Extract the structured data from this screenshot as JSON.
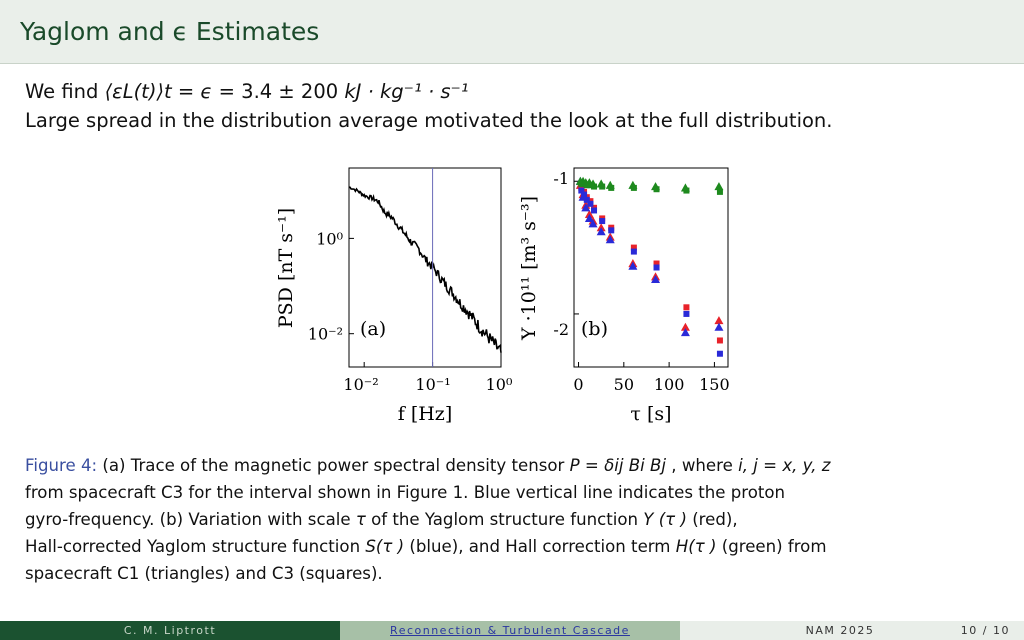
{
  "header": {
    "title": "Yaglom and ϵ Estimates"
  },
  "body": {
    "line1": {
      "we_find": "We find ",
      "expr": "⟨εL(t)⟩t = ϵ = ",
      "value": "3.4 ± 200 ",
      "units": "kJ · kg⁻¹ · s⁻¹"
    },
    "line2": "Large spread in the distribution average motivated the look at the full distribution."
  },
  "figure": {
    "panel_a": {
      "ylabel": "PSD [nT s⁻¹]",
      "xlabel": "f [Hz]",
      "panel_label": "(a)",
      "yticks": [
        "10⁰",
        "10⁻²"
      ],
      "xticks": [
        "10⁻²",
        "10⁻¹",
        "10⁰"
      ],
      "vline_color": "#6a6ab8"
    },
    "panel_b": {
      "ylabel": "Y ·10¹¹ [m³ s⁻³]",
      "xlabel": "τ [s]",
      "panel_label": "(b)",
      "yticks": [
        "-1",
        "-2"
      ],
      "xticks": [
        "0",
        "50",
        "100",
        "150"
      ]
    }
  },
  "caption": {
    "label": "Figure 4:",
    "line1_a": " (a) Trace of the magnetic power spectral density tensor ",
    "line1_math": "P = δij Bi Bj",
    "line1_b": " , where ",
    "line1_math2": "i, j = x, y, z",
    "line2": "from spacecraft C3 for the interval shown in Figure 1. Blue vertical line indicates the proton",
    "line3_a": "gyro-frequency. (b) Variation with scale ",
    "line3_tau": "τ",
    "line3_b": " of the Yaglom structure function ",
    "line3_y": "Y (τ )",
    "line3_c": " (red),",
    "line4_a": "Hall-corrected Yaglom structure function ",
    "line4_s": "S(τ )",
    "line4_b": " (blue), and Hall correction term ",
    "line4_h": "H(τ )",
    "line4_c": " (green) from",
    "line5": "spacecraft C1 (triangles) and C3 (squares)."
  },
  "footer": {
    "author": "C. M. Liptrott",
    "talk": "Reconnection & Turbulent Cascade",
    "conference": "NAM 2025",
    "page": "10 / 10"
  },
  "chart_data": [
    {
      "type": "line",
      "xscale": "log",
      "yscale": "log",
      "xlim": [
        0.006,
        1.0
      ],
      "ylim": [
        0.002,
        30
      ],
      "xlabel": "f [Hz]",
      "ylabel": "PSD [nT s⁻¹]",
      "vline_x": 0.1,
      "x": [
        0.006,
        0.008,
        0.01,
        0.013,
        0.016,
        0.02,
        0.025,
        0.032,
        0.04,
        0.05,
        0.063,
        0.08,
        0.1,
        0.13,
        0.16,
        0.2,
        0.25,
        0.32,
        0.4,
        0.5,
        0.63,
        0.8,
        1.0
      ],
      "y": [
        12,
        10,
        8,
        7,
        6,
        3.5,
        2.8,
        1.8,
        1.2,
        0.8,
        0.6,
        0.35,
        0.25,
        0.15,
        0.1,
        0.07,
        0.045,
        0.03,
        0.02,
        0.013,
        0.009,
        0.006,
        0.004
      ]
    },
    {
      "type": "scatter",
      "xlim": [
        -5,
        165
      ],
      "ylim": [
        -2.4,
        -0.9
      ],
      "xlabel": "τ [s]",
      "ylabel": "Y ·10¹¹ [m³ s⁻³]",
      "series": [
        {
          "name": "Y (τ )",
          "color": "#e8222a",
          "marker": "triangle",
          "x": [
            2,
            5,
            8,
            12,
            16,
            25,
            35,
            60,
            85,
            118,
            155
          ],
          "y": [
            -1.03,
            -1.1,
            -1.18,
            -1.25,
            -1.3,
            -1.35,
            -1.42,
            -1.62,
            -1.72,
            -2.1,
            -2.05
          ]
        },
        {
          "name": "Y (τ )",
          "color": "#e8222a",
          "marker": "square",
          "x": [
            2,
            5,
            8,
            12,
            16,
            25,
            35,
            60,
            85,
            118,
            155
          ],
          "y": [
            -1.05,
            -1.08,
            -1.12,
            -1.15,
            -1.2,
            -1.28,
            -1.35,
            -1.5,
            -1.62,
            -1.95,
            -2.2
          ]
        },
        {
          "name": "S(τ )",
          "color": "#2a2ad8",
          "marker": "triangle",
          "x": [
            2,
            5,
            8,
            12,
            16,
            25,
            35,
            60,
            85,
            118,
            155
          ],
          "y": [
            -1.0,
            -1.12,
            -1.2,
            -1.28,
            -1.32,
            -1.38,
            -1.44,
            -1.64,
            -1.74,
            -2.14,
            -2.1
          ]
        },
        {
          "name": "S(τ )",
          "color": "#2a2ad8",
          "marker": "square",
          "x": [
            2,
            5,
            8,
            12,
            16,
            25,
            35,
            60,
            85,
            118,
            155
          ],
          "y": [
            -1.07,
            -1.1,
            -1.14,
            -1.17,
            -1.22,
            -1.3,
            -1.37,
            -1.53,
            -1.65,
            -2.0,
            -2.3
          ]
        },
        {
          "name": "H(τ )",
          "color": "#1e8a1e",
          "marker": "triangle",
          "x": [
            2,
            5,
            8,
            12,
            16,
            25,
            35,
            60,
            85,
            118,
            155
          ],
          "y": [
            -1.0,
            -1.0,
            -1.01,
            -1.01,
            -1.02,
            -1.02,
            -1.03,
            -1.03,
            -1.04,
            -1.05,
            -1.04
          ]
        },
        {
          "name": "H(τ )",
          "color": "#1e8a1e",
          "marker": "square",
          "x": [
            2,
            5,
            8,
            12,
            16,
            25,
            35,
            60,
            85,
            118,
            155
          ],
          "y": [
            -1.02,
            -1.02,
            -1.03,
            -1.03,
            -1.04,
            -1.04,
            -1.05,
            -1.05,
            -1.06,
            -1.07,
            -1.08
          ]
        }
      ]
    }
  ]
}
